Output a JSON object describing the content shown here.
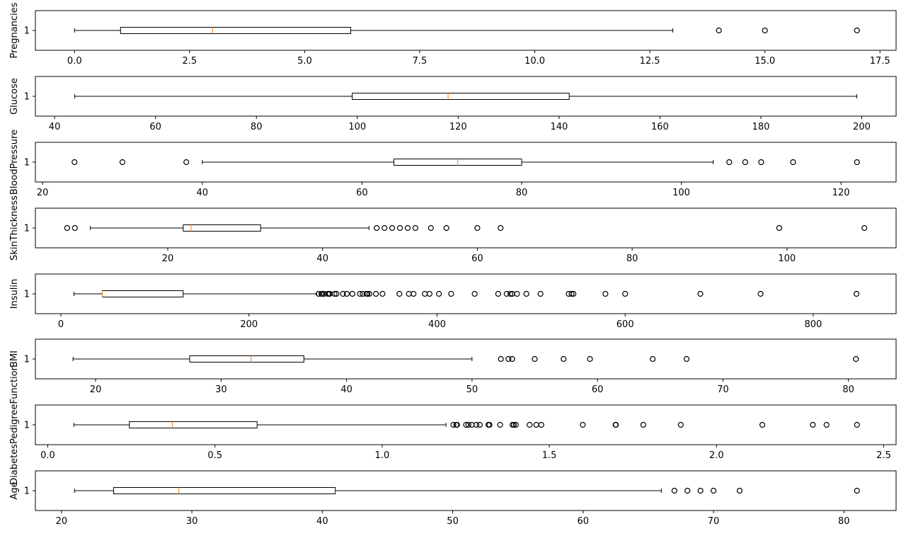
{
  "chart_data": [
    {
      "type": "boxplot",
      "ylabel": "Pregnancies",
      "ytick": "1",
      "xlim": [
        -0.85,
        17.85
      ],
      "xticks": [
        0,
        2.5,
        5,
        7.5,
        10,
        12.5,
        15,
        17.5
      ],
      "xtick_labels": [
        "0.0",
        "2.5",
        "5.0",
        "7.5",
        "10.0",
        "12.5",
        "15.0",
        "17.5"
      ],
      "whisker_low": 0,
      "q1": 1,
      "median": 3,
      "q3": 6,
      "whisker_high": 13,
      "outliers": [
        14,
        15,
        17
      ]
    },
    {
      "type": "boxplot",
      "ylabel": "Glucose",
      "ytick": "1",
      "xlim": [
        36.2,
        206.8
      ],
      "xticks": [
        40,
        60,
        80,
        100,
        120,
        140,
        160,
        180,
        200
      ],
      "xtick_labels": [
        "40",
        "60",
        "80",
        "100",
        "120",
        "140",
        "160",
        "180",
        "200"
      ],
      "whisker_low": 44,
      "q1": 99,
      "median": 118,
      "q3": 142,
      "whisker_high": 199,
      "outliers": []
    },
    {
      "type": "boxplot",
      "ylabel": "BloodPressure",
      "ytick": "1",
      "xlim": [
        19.1,
        126.9
      ],
      "xticks": [
        20,
        40,
        60,
        80,
        100,
        120
      ],
      "xtick_labels": [
        "20",
        "40",
        "60",
        "80",
        "100",
        "120"
      ],
      "whisker_low": 40,
      "q1": 64,
      "median": 72,
      "q3": 80,
      "whisker_high": 104,
      "outliers": [
        24,
        30,
        38,
        106,
        108,
        110,
        114,
        122
      ]
    },
    {
      "type": "boxplot",
      "ylabel": "SkinThickness",
      "ytick": "1",
      "xlim": [
        2.9,
        114.1
      ],
      "xticks": [
        20,
        40,
        60,
        80,
        100
      ],
      "xtick_labels": [
        "20",
        "40",
        "60",
        "80",
        "100"
      ],
      "whisker_low": 10,
      "q1": 22,
      "median": 23,
      "q3": 32,
      "whisker_high": 46,
      "outliers": [
        7,
        8,
        47,
        48,
        49,
        50,
        51,
        52,
        54,
        56,
        60,
        63,
        99,
        110
      ]
    },
    {
      "type": "boxplot",
      "ylabel": "Insulin",
      "ytick": "1",
      "xlim": [
        -27.1,
        888.1
      ],
      "xticks": [
        0,
        200,
        400,
        600,
        800
      ],
      "xtick_labels": [
        "0",
        "200",
        "400",
        "600",
        "800"
      ],
      "whisker_low": 14,
      "q1": 44,
      "median": 44,
      "q3": 130,
      "whisker_high": 272,
      "outliers": [
        274,
        277,
        278,
        280,
        284,
        285,
        286,
        291,
        293,
        300,
        304,
        310,
        318,
        321,
        325,
        326,
        328,
        335,
        342,
        360,
        370,
        375,
        387,
        392,
        402,
        415,
        440,
        465,
        474,
        478,
        480,
        485,
        495,
        510,
        540,
        543,
        545,
        579,
        600,
        680,
        744,
        846
      ]
    },
    {
      "type": "boxplot",
      "ylabel": "BMI",
      "ytick": "1",
      "xlim": [
        15.2,
        83.8
      ],
      "xticks": [
        20,
        30,
        40,
        50,
        60,
        70,
        80
      ],
      "xtick_labels": [
        "20",
        "30",
        "40",
        "50",
        "60",
        "70",
        "80"
      ],
      "whisker_low": 18.2,
      "q1": 27.5,
      "median": 32.4,
      "q3": 36.6,
      "whisker_high": 50,
      "outliers": [
        52.3,
        52.9,
        53.2,
        55,
        57.3,
        59.4,
        64.4,
        67.1,
        80.6
      ]
    },
    {
      "type": "boxplot",
      "ylabel": "DiabetesPedigreeFunction",
      "ytick": "1",
      "xlim": [
        -0.037,
        2.537
      ],
      "xticks": [
        0,
        0.5,
        1,
        1.5,
        2,
        2.5
      ],
      "xtick_labels": [
        "0.0",
        "0.5",
        "1.0",
        "1.5",
        "2.0",
        "2.5"
      ],
      "whisker_low": 0.078,
      "q1": 0.244,
      "median": 0.3725,
      "q3": 0.626,
      "whisker_high": 1.191,
      "outliers": [
        1.213,
        1.222,
        1.224,
        1.251,
        1.258,
        1.268,
        1.282,
        1.292,
        1.318,
        1.321,
        1.353,
        1.39,
        1.394,
        1.4,
        1.441,
        1.461,
        1.476,
        1.6,
        1.698,
        1.699,
        1.781,
        1.893,
        2.137,
        2.288,
        2.329,
        2.42
      ]
    },
    {
      "type": "boxplot",
      "ylabel": "Age",
      "ytick": "1",
      "xlim": [
        18,
        84
      ],
      "xticks": [
        20,
        30,
        40,
        50,
        60,
        70,
        80
      ],
      "xtick_labels": [
        "20",
        "30",
        "40",
        "50",
        "60",
        "70",
        "80"
      ],
      "whisker_low": 21,
      "q1": 24,
      "median": 29,
      "q3": 41,
      "whisker_high": 66,
      "outliers": [
        67,
        68,
        69,
        70,
        72,
        81
      ]
    }
  ],
  "colors": {
    "median": "#ff7f0e",
    "box": "#000000",
    "outlier": "#000000",
    "axes": "#000000"
  }
}
